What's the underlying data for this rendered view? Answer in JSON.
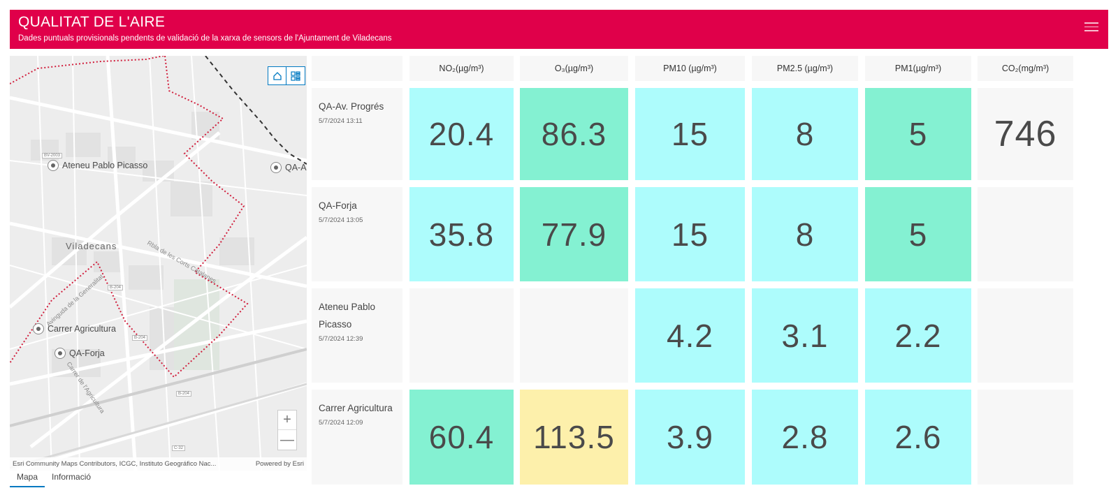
{
  "header": {
    "title": "QUALITAT DE L'AIRE",
    "subtitle": "Dades puntuals provisionals pendents de validació de la xarxa de sensors de l'Ajuntament de Viladecans",
    "menu_icon": "hamburger-icon"
  },
  "map": {
    "home_icon": "home-icon",
    "layers_icon": "layers-list-icon",
    "labels": {
      "ateneu": "Ateneu Pablo Picasso",
      "qa_av": "QA-A",
      "city": "Viladecans",
      "carrer": "Carrer Agricultura",
      "qa_forja": "QA-Forja",
      "road_bv": "BV-2003",
      "road_b204a": "B-204",
      "road_b204b": "B-204",
      "road_b204c": "B-204",
      "road_c32": "C-32",
      "street_gen": "Avinguda de la Generalitat",
      "street_agr": "Carrer de l'Agricultura",
      "street_corts": "Rbla de les Corts Catalanes"
    },
    "zoom_in": "+",
    "zoom_out": "—",
    "attribution": "Esri Community Maps Contributors, ICGC, Instituto Geográfico Nac...",
    "powered": "Powered by Esri"
  },
  "tabs": [
    {
      "label": "Mapa"
    },
    {
      "label": "Informació"
    }
  ],
  "columns": [
    {
      "label": "NO₂(µg/m³)"
    },
    {
      "label": "O₃(µg/m³)"
    },
    {
      "label": "PM10 (µg/m³)"
    },
    {
      "label": "PM2.5 (µg/m³)"
    },
    {
      "label": "PM1(µg/m³)"
    },
    {
      "label": "CO₂(mg/m³)"
    }
  ],
  "colors": {
    "header": "#e0004a",
    "good": "#adfcfc",
    "fair": "#84f1d2",
    "moderate": "#fdf0ab",
    "empty": "#f7f7f7"
  },
  "rows": [
    {
      "name": "QA-Av. Progrés",
      "timestamp": "5/7/2024 13:11",
      "values": [
        "20.4",
        "86.3",
        "15",
        "8",
        "5",
        "746"
      ]
    },
    {
      "name": "QA-Forja",
      "timestamp": "5/7/2024 13:05",
      "values": [
        "35.8",
        "77.9",
        "15",
        "8",
        "5",
        ""
      ]
    },
    {
      "name": "Ateneu Pablo Picasso",
      "timestamp": "5/7/2024 12:39",
      "values": [
        "",
        "",
        "4.2",
        "3.1",
        "2.2",
        ""
      ]
    },
    {
      "name": "Carrer Agricultura",
      "timestamp": "5/7/2024 12:09",
      "values": [
        "60.4",
        "113.5",
        "3.9",
        "2.8",
        "2.6",
        ""
      ]
    }
  ]
}
